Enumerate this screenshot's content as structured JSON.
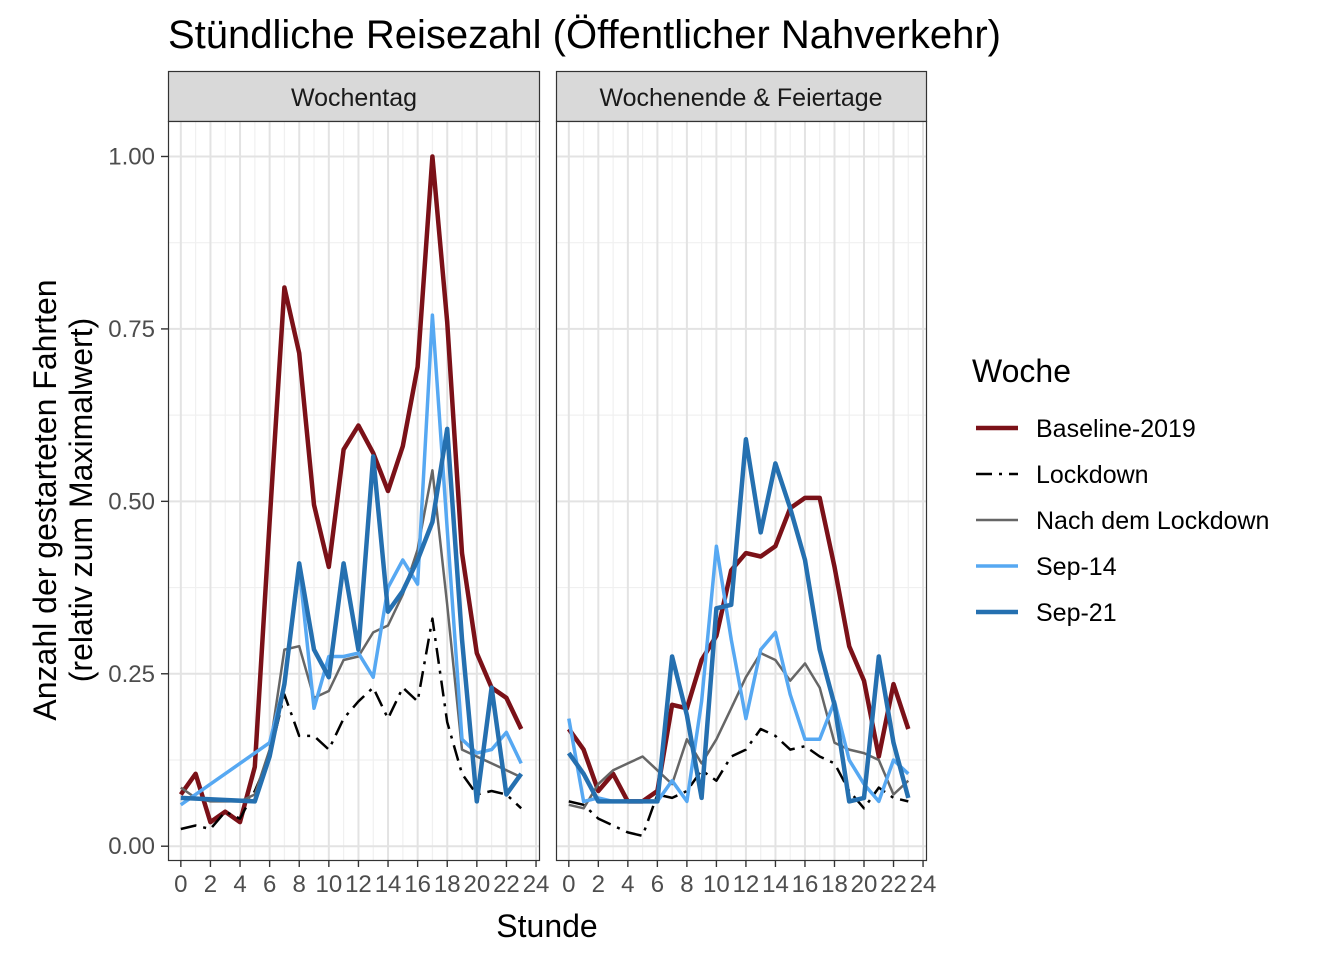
{
  "chart_data": {
    "type": "line",
    "title": "Stündliche Reisezahl (Öffentlicher Nahverkehr)",
    "xlabel": "Stunde",
    "ylabel": [
      "Anzahl der gestarteten Fahrten",
      "(relativ zum Maximalwert)"
    ],
    "xlim": [
      -0.8,
      24.2
    ],
    "ylim": [
      -0.02,
      1.05
    ],
    "x_ticks": [
      0,
      2,
      4,
      6,
      8,
      10,
      12,
      14,
      16,
      18,
      20,
      22,
      24
    ],
    "x_tick_labels": [
      "0",
      "2",
      "4",
      "6",
      "8",
      "10",
      "12",
      "14",
      "16",
      "18",
      "20",
      "22",
      "24"
    ],
    "y_ticks": [
      0,
      0.25,
      0.5,
      0.75,
      1.0
    ],
    "y_tick_labels": [
      "0.00",
      "0.25",
      "0.50",
      "0.75",
      "1.00"
    ],
    "grid": true,
    "legend": {
      "title": "Woche",
      "position": "right",
      "entries": [
        "Baseline-2019",
        "Lockdown",
        "Nach dem Lockdown",
        "Sep-14",
        "Sep-21"
      ]
    },
    "series_styles": [
      {
        "name": "Baseline-2019",
        "color": "#7b1118",
        "width": 4.5,
        "dash": ""
      },
      {
        "name": "Lockdown",
        "color": "#000000",
        "width": 2.5,
        "dash": "16,7,3,7"
      },
      {
        "name": "Nach dem Lockdown",
        "color": "#666666",
        "width": 2.5,
        "dash": ""
      },
      {
        "name": "Sep-14",
        "color": "#56a8f2",
        "width": 3.5,
        "dash": ""
      },
      {
        "name": "Sep-21",
        "color": "#2570b0",
        "width": 4.5,
        "dash": ""
      }
    ],
    "panels": [
      {
        "label": "Wochentag",
        "series": [
          {
            "name": "Baseline-2019",
            "x": [
              0,
              1,
              2,
              3,
              4,
              5,
              6,
              7,
              8,
              9,
              10,
              11,
              12,
              13,
              14,
              15,
              16,
              17,
              18,
              19,
              20,
              21,
              22,
              23
            ],
            "values": [
              0.075,
              0.105,
              0.035,
              0.05,
              0.035,
              0.115,
              0.47,
              0.81,
              0.715,
              0.495,
              0.405,
              0.575,
              0.61,
              0.57,
              0.515,
              0.58,
              0.695,
              1.0,
              0.76,
              0.425,
              0.28,
              0.23,
              0.215,
              0.17
            ]
          },
          {
            "name": "Lockdown",
            "x": [
              0,
              1,
              2,
              3,
              4,
              5,
              6,
              7,
              8,
              9,
              10,
              11,
              12,
              13,
              14,
              15,
              16,
              17,
              18,
              19,
              20,
              21,
              22,
              23
            ],
            "values": [
              0.025,
              0.03,
              0.025,
              0.05,
              0.04,
              0.08,
              0.13,
              0.22,
              0.16,
              0.16,
              0.14,
              0.185,
              0.21,
              0.23,
              0.185,
              0.23,
              0.21,
              0.33,
              0.18,
              0.105,
              0.075,
              0.08,
              0.075,
              0.055
            ]
          },
          {
            "name": "Nach dem Lockdown",
            "x": [
              0,
              1,
              2,
              3,
              4,
              5,
              6,
              7,
              8,
              9,
              10,
              11,
              12,
              13,
              14,
              15,
              16,
              17,
              18,
              19,
              20,
              21,
              22,
              23
            ],
            "values": [
              0.085,
              0.07,
              0.065,
              0.065,
              0.065,
              0.075,
              0.14,
              0.285,
              0.29,
              0.215,
              0.225,
              0.27,
              0.275,
              0.31,
              0.32,
              0.365,
              0.43,
              0.545,
              0.35,
              0.14,
              0.13,
              0.12,
              0.11,
              0.1
            ]
          },
          {
            "name": "Sep-14",
            "x": [
              0,
              6,
              7,
              8,
              9,
              10,
              11,
              12,
              13,
              14,
              15,
              16,
              17,
              18,
              19,
              20,
              21,
              22,
              23
            ],
            "values": [
              0.06,
              0.15,
              0.235,
              0.405,
              0.2,
              0.275,
              0.275,
              0.28,
              0.245,
              0.375,
              0.415,
              0.38,
              0.77,
              0.46,
              0.155,
              0.135,
              0.14,
              0.165,
              0.12
            ]
          },
          {
            "name": "Sep-21",
            "x": [
              0,
              5,
              6,
              7,
              8,
              9,
              10,
              11,
              12,
              13,
              14,
              15,
              16,
              17,
              18,
              19,
              20,
              21,
              22,
              23
            ],
            "values": [
              0.07,
              0.065,
              0.13,
              0.235,
              0.41,
              0.285,
              0.245,
              0.41,
              0.285,
              0.565,
              0.34,
              0.37,
              0.415,
              0.47,
              0.605,
              0.3,
              0.065,
              0.23,
              0.075,
              0.105
            ]
          }
        ]
      },
      {
        "label": "Wochenende & Feiertage",
        "series": [
          {
            "name": "Baseline-2019",
            "x": [
              0,
              1,
              2,
              3,
              4,
              5,
              6,
              7,
              8,
              9,
              10,
              11,
              12,
              13,
              14,
              15,
              16,
              17,
              18,
              19,
              20,
              21,
              22,
              23
            ],
            "values": [
              0.17,
              0.14,
              0.08,
              0.105,
              0.065,
              0.065,
              0.08,
              0.205,
              0.2,
              0.27,
              0.305,
              0.4,
              0.425,
              0.42,
              0.435,
              0.49,
              0.505,
              0.505,
              0.405,
              0.29,
              0.24,
              0.13,
              0.235,
              0.17
            ]
          },
          {
            "name": "Lockdown",
            "x": [
              0,
              1,
              2,
              3,
              4,
              5,
              6,
              7,
              8,
              9,
              10,
              11,
              12,
              13,
              14,
              15,
              16,
              17,
              18,
              19,
              20,
              21,
              22,
              23
            ],
            "values": [
              0.065,
              0.06,
              0.04,
              0.03,
              0.02,
              0.015,
              0.075,
              0.07,
              0.08,
              0.11,
              0.095,
              0.13,
              0.14,
              0.17,
              0.16,
              0.14,
              0.145,
              0.13,
              0.12,
              0.08,
              0.055,
              0.085,
              0.07,
              0.065
            ]
          },
          {
            "name": "Nach dem Lockdown",
            "x": [
              0,
              1,
              2,
              3,
              4,
              5,
              6,
              7,
              8,
              9,
              10,
              11,
              12,
              13,
              14,
              15,
              16,
              17,
              18,
              19,
              20,
              21,
              22,
              23
            ],
            "values": [
              0.06,
              0.055,
              0.09,
              0.11,
              0.12,
              0.13,
              0.11,
              0.09,
              0.155,
              0.12,
              0.155,
              0.2,
              0.245,
              0.28,
              0.27,
              0.24,
              0.265,
              0.23,
              0.15,
              0.14,
              0.135,
              0.125,
              0.075,
              0.095
            ]
          },
          {
            "name": "Sep-14",
            "x": [
              0,
              1,
              2,
              3,
              4,
              5,
              6,
              7,
              8,
              9,
              10,
              11,
              12,
              13,
              14,
              15,
              16,
              17,
              18,
              19,
              20,
              21,
              22,
              23
            ],
            "values": [
              0.185,
              0.065,
              0.07,
              0.065,
              0.065,
              0.065,
              0.065,
              0.095,
              0.065,
              0.21,
              0.435,
              0.3,
              0.185,
              0.285,
              0.31,
              0.22,
              0.155,
              0.155,
              0.21,
              0.125,
              0.09,
              0.065,
              0.125,
              0.105
            ]
          },
          {
            "name": "Sep-21",
            "x": [
              0,
              1,
              2,
              3,
              4,
              5,
              6,
              7,
              8,
              9,
              10,
              11,
              12,
              13,
              14,
              15,
              16,
              17,
              18,
              19,
              20,
              21,
              22,
              23
            ],
            "values": [
              0.135,
              0.105,
              0.065,
              0.065,
              0.065,
              0.065,
              0.065,
              0.275,
              0.19,
              0.07,
              0.345,
              0.35,
              0.59,
              0.455,
              0.555,
              0.49,
              0.415,
              0.285,
              0.205,
              0.065,
              0.07,
              0.275,
              0.15,
              0.07
            ]
          }
        ]
      }
    ]
  }
}
